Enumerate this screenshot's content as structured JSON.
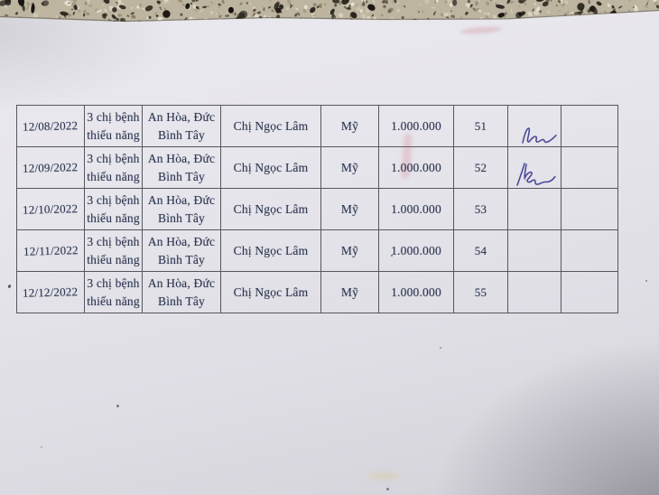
{
  "table": {
    "rows": [
      {
        "date": "12/08/2022",
        "beneficiary": [
          "3 chị bệnh",
          "thiếu năng"
        ],
        "location": [
          "An Hòa, Đức",
          "Bình Tây"
        ],
        "person": "Chị Ngọc Lâm",
        "sponsor": "Mỹ",
        "amount": "1.000.000",
        "seq": "51",
        "signature": "sig-style-1",
        "empty": ""
      },
      {
        "date": "12/09/2022",
        "beneficiary": [
          "3 chị bệnh",
          "thiếu năng"
        ],
        "location": [
          "An Hòa, Đức",
          "Bình Tây"
        ],
        "person": "Chị Ngọc Lâm",
        "sponsor": "Mỹ",
        "amount": "1.000.000",
        "seq": "52",
        "signature": "sig-style-2",
        "empty": ""
      },
      {
        "date": "12/10/2022",
        "beneficiary": [
          "3 chị bệnh",
          "thiếu năng"
        ],
        "location": [
          "An Hòa, Đức",
          "Bình Tây"
        ],
        "person": "Chị Ngọc Lâm",
        "sponsor": "Mỹ",
        "amount": "1.000.000",
        "seq": "53",
        "signature": "",
        "empty": ""
      },
      {
        "date": "12/11/2022",
        "beneficiary": [
          "3 chị bệnh",
          "thiếu năng"
        ],
        "location": [
          "An Hòa, Đức",
          "Bình Tây"
        ],
        "person": "Chị Ngọc Lâm",
        "sponsor": "Mỹ",
        "amount": "1.000.000",
        "seq": "54",
        "signature": "",
        "empty": ""
      },
      {
        "date": "12/12/2022",
        "beneficiary": [
          "3 chị bệnh",
          "thiếu năng"
        ],
        "location": [
          "An Hòa, Đức",
          "Bình Tây"
        ],
        "person": "Chị Ngọc Lâm",
        "sponsor": "Mỹ",
        "amount": "1.000.000",
        "seq": "55",
        "signature": "",
        "empty": ""
      }
    ]
  },
  "signatures": [
    {
      "row_seq": "51",
      "kind": "handwritten-signature",
      "style": "sig-style-1"
    },
    {
      "row_seq": "52",
      "kind": "handwritten-signature",
      "style": "sig-style-2"
    }
  ],
  "colors": {
    "paper": "#e6e5eb",
    "print_ink": "#2b3550",
    "signature_ink": "#383b8f",
    "table_border": "#56575e",
    "granite_base": "#bdb5a0"
  }
}
